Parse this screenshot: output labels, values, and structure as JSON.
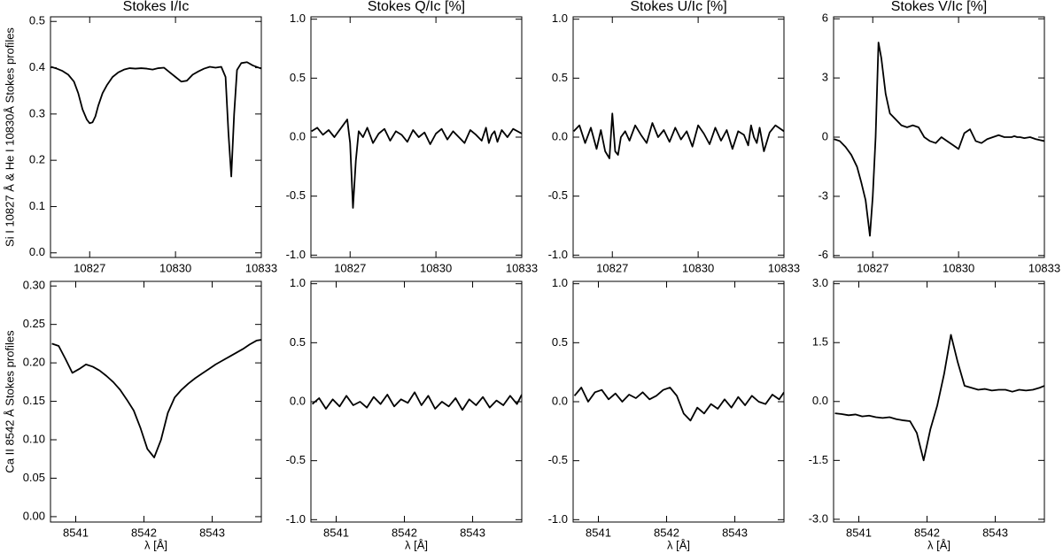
{
  "chart_data": [
    {
      "type": "line",
      "title": "Stokes I/Ic",
      "ylabel": "Si I 10827 Å & He I 10830Å Stokes profiles",
      "x": [
        10825.65,
        10825.85,
        10826.05,
        10826.25,
        10826.45,
        10826.6,
        10826.75,
        10826.9,
        10827.0,
        10827.1,
        10827.2,
        10827.3,
        10827.45,
        10827.6,
        10827.8,
        10828.0,
        10828.2,
        10828.4,
        10828.6,
        10828.8,
        10829.0,
        10829.2,
        10829.4,
        10829.6,
        10829.8,
        10830.0,
        10830.2,
        10830.4,
        10830.6,
        10830.8,
        10831.0,
        10831.2,
        10831.4,
        10831.6,
        10831.75,
        10831.85,
        10831.95,
        10832.05,
        10832.15,
        10832.3,
        10832.5,
        10832.7,
        10833.0
      ],
      "values": [
        0.402,
        0.398,
        0.393,
        0.385,
        0.37,
        0.345,
        0.31,
        0.288,
        0.28,
        0.282,
        0.295,
        0.318,
        0.345,
        0.362,
        0.38,
        0.39,
        0.396,
        0.399,
        0.398,
        0.399,
        0.398,
        0.396,
        0.399,
        0.4,
        0.39,
        0.38,
        0.37,
        0.372,
        0.385,
        0.392,
        0.398,
        0.402,
        0.4,
        0.402,
        0.38,
        0.26,
        0.165,
        0.3,
        0.395,
        0.41,
        0.412,
        0.405,
        0.398
      ],
      "color": "#000000",
      "xlim": [
        10825.63,
        10833
      ],
      "xticks": [
        10827,
        10830,
        10833
      ],
      "ylim": [
        -0.01,
        0.51
      ],
      "yticks": [
        {
          "value": 0,
          "label": "0.0"
        },
        0.1,
        0.2,
        0.3,
        0.4,
        0.5
      ]
    },
    {
      "type": "line",
      "title": "Stokes Q/Ic [%]",
      "x": [
        10825.65,
        10825.85,
        10826.05,
        10826.25,
        10826.45,
        10826.6,
        10826.75,
        10826.9,
        10827.0,
        10827.1,
        10827.2,
        10827.3,
        10827.45,
        10827.6,
        10827.8,
        10828.0,
        10828.2,
        10828.4,
        10828.6,
        10828.8,
        10829.0,
        10829.2,
        10829.4,
        10829.6,
        10829.8,
        10830.0,
        10830.2,
        10830.4,
        10830.6,
        10830.8,
        10831.0,
        10831.2,
        10831.4,
        10831.6,
        10831.75,
        10831.85,
        10831.95,
        10832.05,
        10832.15,
        10832.3,
        10832.5,
        10832.7,
        10833.0
      ],
      "values": [
        0.05,
        0.08,
        0.02,
        0.06,
        0.0,
        0.05,
        0.1,
        0.15,
        -0.05,
        -0.6,
        -0.2,
        0.05,
        0.0,
        0.08,
        -0.05,
        0.03,
        0.07,
        -0.03,
        0.05,
        0.02,
        -0.04,
        0.06,
        0.0,
        0.04,
        -0.06,
        0.03,
        0.07,
        -0.02,
        0.05,
        0.0,
        -0.05,
        0.06,
        0.02,
        -0.03,
        0.08,
        -0.05,
        0.02,
        0.05,
        -0.04,
        0.06,
        0.0,
        0.07,
        0.03
      ],
      "color": "#000000",
      "xlim": [
        10825.63,
        10833
      ],
      "xticks": [
        10827,
        10830,
        10833
      ],
      "ylim": [
        -1.02,
        1.02
      ],
      "yticks": [
        {
          "value": -1,
          "label": "-1.0"
        },
        -0.5,
        {
          "value": 0,
          "label": "0.0"
        },
        0.5,
        {
          "value": 1,
          "label": "1.0"
        }
      ]
    },
    {
      "type": "line",
      "title": "Stokes U/Ic [%]",
      "x": [
        10825.65,
        10825.85,
        10826.05,
        10826.25,
        10826.45,
        10826.6,
        10826.75,
        10826.9,
        10827.0,
        10827.1,
        10827.2,
        10827.3,
        10827.45,
        10827.6,
        10827.8,
        10828.0,
        10828.2,
        10828.4,
        10828.6,
        10828.8,
        10829.0,
        10829.2,
        10829.4,
        10829.6,
        10829.8,
        10830.0,
        10830.2,
        10830.4,
        10830.6,
        10830.8,
        10831.0,
        10831.2,
        10831.4,
        10831.6,
        10831.75,
        10831.85,
        10831.95,
        10832.05,
        10832.15,
        10832.3,
        10832.5,
        10832.7,
        10833.0
      ],
      "values": [
        0.05,
        0.1,
        -0.05,
        0.08,
        -0.1,
        0.06,
        -0.12,
        -0.18,
        0.2,
        -0.12,
        -0.15,
        0.0,
        0.05,
        -0.03,
        0.1,
        0.02,
        -0.05,
        0.12,
        0.0,
        0.06,
        -0.04,
        0.08,
        -0.02,
        0.05,
        -0.08,
        0.1,
        0.03,
        -0.06,
        0.08,
        -0.03,
        0.06,
        -0.1,
        0.05,
        0.02,
        -0.07,
        0.1,
        0.0,
        -0.05,
        0.08,
        -0.12,
        0.04,
        0.1,
        0.05
      ],
      "color": "#000000",
      "xlim": [
        10825.63,
        10833
      ],
      "xticks": [
        10827,
        10830,
        10833
      ],
      "ylim": [
        -1.02,
        1.02
      ],
      "yticks": [
        {
          "value": -1,
          "label": "-1.0"
        },
        -0.5,
        {
          "value": 0,
          "label": "0.0"
        },
        0.5,
        {
          "value": 1,
          "label": "1.0"
        }
      ]
    },
    {
      "type": "line",
      "title": "Stokes V/Ic [%]",
      "x": [
        10825.65,
        10825.85,
        10826.05,
        10826.25,
        10826.45,
        10826.6,
        10826.75,
        10826.9,
        10827.0,
        10827.1,
        10827.2,
        10827.3,
        10827.45,
        10827.6,
        10827.8,
        10828.0,
        10828.2,
        10828.4,
        10828.6,
        10828.8,
        10829.0,
        10829.2,
        10829.4,
        10829.6,
        10829.8,
        10830.0,
        10830.2,
        10830.4,
        10830.6,
        10830.8,
        10831.0,
        10831.2,
        10831.4,
        10831.6,
        10831.75,
        10831.85,
        10831.95,
        10832.05,
        10832.15,
        10832.3,
        10832.5,
        10832.7,
        10833.0
      ],
      "values": [
        -0.1,
        -0.2,
        -0.5,
        -0.9,
        -1.5,
        -2.3,
        -3.2,
        -5.0,
        -3.0,
        0.0,
        4.8,
        4.0,
        2.2,
        1.2,
        0.9,
        0.6,
        0.5,
        0.6,
        0.5,
        0.0,
        -0.2,
        -0.3,
        0.0,
        -0.2,
        -0.4,
        -0.6,
        0.2,
        0.4,
        -0.2,
        -0.3,
        -0.1,
        0.0,
        0.1,
        0.0,
        0.0,
        0.0,
        0.05,
        0.0,
        0.0,
        -0.05,
        0.0,
        -0.1,
        -0.2
      ],
      "color": "#000000",
      "xlim": [
        10825.63,
        10833
      ],
      "xticks": [
        10827,
        10830,
        10833
      ],
      "ylim": [
        -6.1,
        6.1
      ],
      "yticks": [
        -6,
        -3,
        0,
        3,
        6
      ]
    },
    {
      "type": "line",
      "ylabel": "Ca II 8542 Å Stokes profiles",
      "xlabel": "λ [Å]",
      "x": [
        8540.65,
        8540.75,
        8540.85,
        8540.95,
        8541.05,
        8541.15,
        8541.25,
        8541.35,
        8541.45,
        8541.55,
        8541.65,
        8541.75,
        8541.85,
        8541.95,
        8542.05,
        8542.15,
        8542.25,
        8542.35,
        8542.45,
        8542.55,
        8542.65,
        8542.75,
        8542.85,
        8542.95,
        8543.05,
        8543.15,
        8543.25,
        8543.35,
        8543.45,
        8543.55,
        8543.65,
        8543.72
      ],
      "values": [
        0.225,
        0.222,
        0.205,
        0.187,
        0.192,
        0.198,
        0.195,
        0.19,
        0.183,
        0.175,
        0.165,
        0.152,
        0.138,
        0.115,
        0.088,
        0.077,
        0.1,
        0.135,
        0.155,
        0.165,
        0.173,
        0.18,
        0.186,
        0.192,
        0.198,
        0.203,
        0.208,
        0.213,
        0.218,
        0.224,
        0.229,
        0.23
      ],
      "color": "#000000",
      "xlim": [
        8540.63,
        8543.72
      ],
      "xticks": [
        8541,
        8542,
        8543
      ],
      "ylim": [
        -0.007,
        0.306
      ],
      "yticks": [
        {
          "value": 0,
          "label": "0.00"
        },
        0.05,
        {
          "value": 0.1,
          "label": "0.10"
        },
        0.15,
        {
          "value": 0.2,
          "label": "0.20"
        },
        0.25,
        {
          "value": 0.3,
          "label": "0.30"
        }
      ]
    },
    {
      "type": "line",
      "xlabel": "λ [Å]",
      "x": [
        8540.65,
        8540.75,
        8540.85,
        8540.95,
        8541.05,
        8541.15,
        8541.25,
        8541.35,
        8541.45,
        8541.55,
        8541.65,
        8541.75,
        8541.85,
        8541.95,
        8542.05,
        8542.15,
        8542.25,
        8542.35,
        8542.45,
        8542.55,
        8542.65,
        8542.75,
        8542.85,
        8542.95,
        8543.05,
        8543.15,
        8543.25,
        8543.35,
        8543.45,
        8543.55,
        8543.65,
        8543.72
      ],
      "values": [
        -0.02,
        0.03,
        -0.06,
        0.02,
        -0.04,
        0.05,
        -0.03,
        0.0,
        -0.05,
        0.04,
        -0.02,
        0.06,
        -0.04,
        0.02,
        -0.01,
        0.08,
        -0.03,
        0.05,
        -0.06,
        0.0,
        -0.04,
        0.03,
        -0.07,
        0.02,
        -0.03,
        0.04,
        -0.05,
        0.01,
        -0.03,
        0.05,
        -0.02,
        0.06
      ],
      "color": "#000000",
      "xlim": [
        8540.63,
        8543.72
      ],
      "xticks": [
        8541,
        8542,
        8543
      ],
      "ylim": [
        -1.02,
        1.02
      ],
      "yticks": [
        {
          "value": -1,
          "label": "-1.0"
        },
        -0.5,
        {
          "value": 0,
          "label": "0.0"
        },
        0.5,
        {
          "value": 1,
          "label": "1.0"
        }
      ]
    },
    {
      "type": "line",
      "xlabel": "λ [Å]",
      "x": [
        8540.65,
        8540.75,
        8540.85,
        8540.95,
        8541.05,
        8541.15,
        8541.25,
        8541.35,
        8541.45,
        8541.55,
        8541.65,
        8541.75,
        8541.85,
        8541.95,
        8542.05,
        8542.15,
        8542.25,
        8542.35,
        8542.45,
        8542.55,
        8542.65,
        8542.75,
        8542.85,
        8542.95,
        8543.05,
        8543.15,
        8543.25,
        8543.35,
        8543.45,
        8543.55,
        8543.65,
        8543.72
      ],
      "values": [
        0.05,
        0.12,
        0.0,
        0.08,
        0.1,
        0.02,
        0.07,
        0.0,
        0.06,
        0.03,
        0.08,
        0.02,
        0.05,
        0.1,
        0.12,
        0.05,
        -0.1,
        -0.16,
        -0.05,
        -0.1,
        -0.02,
        -0.06,
        0.02,
        -0.05,
        0.04,
        -0.03,
        0.05,
        0.0,
        -0.02,
        0.06,
        0.02,
        0.08
      ],
      "color": "#000000",
      "xlim": [
        8540.63,
        8543.72
      ],
      "xticks": [
        8541,
        8542,
        8543
      ],
      "ylim": [
        -1.02,
        1.02
      ],
      "yticks": [
        {
          "value": -1,
          "label": "-1.0"
        },
        -0.5,
        {
          "value": 0,
          "label": "0.0"
        },
        0.5,
        {
          "value": 1,
          "label": "1.0"
        }
      ]
    },
    {
      "type": "line",
      "xlabel": "λ [Å]",
      "x": [
        8540.65,
        8540.75,
        8540.85,
        8540.95,
        8541.05,
        8541.15,
        8541.25,
        8541.35,
        8541.45,
        8541.55,
        8541.65,
        8541.75,
        8541.85,
        8541.95,
        8542.05,
        8542.15,
        8542.25,
        8542.35,
        8542.45,
        8542.55,
        8542.65,
        8542.75,
        8542.85,
        8542.95,
        8543.05,
        8543.15,
        8543.25,
        8543.35,
        8543.45,
        8543.55,
        8543.65,
        8543.72
      ],
      "values": [
        -0.3,
        -0.32,
        -0.35,
        -0.33,
        -0.38,
        -0.36,
        -0.4,
        -0.42,
        -0.4,
        -0.45,
        -0.48,
        -0.5,
        -0.8,
        -1.5,
        -0.7,
        -0.1,
        0.7,
        1.7,
        1.0,
        0.4,
        0.35,
        0.3,
        0.32,
        0.28,
        0.3,
        0.3,
        0.25,
        0.3,
        0.28,
        0.3,
        0.35,
        0.4
      ],
      "color": "#000000",
      "xlim": [
        8540.63,
        8543.72
      ],
      "xticks": [
        8541,
        8542,
        8543
      ],
      "ylim": [
        -3.07,
        3.06
      ],
      "yticks": [
        {
          "value": -3,
          "label": "-3.0"
        },
        -1.5,
        {
          "value": 0,
          "label": "0.0"
        },
        1.5,
        {
          "value": 3,
          "label": "3.0"
        }
      ]
    }
  ]
}
